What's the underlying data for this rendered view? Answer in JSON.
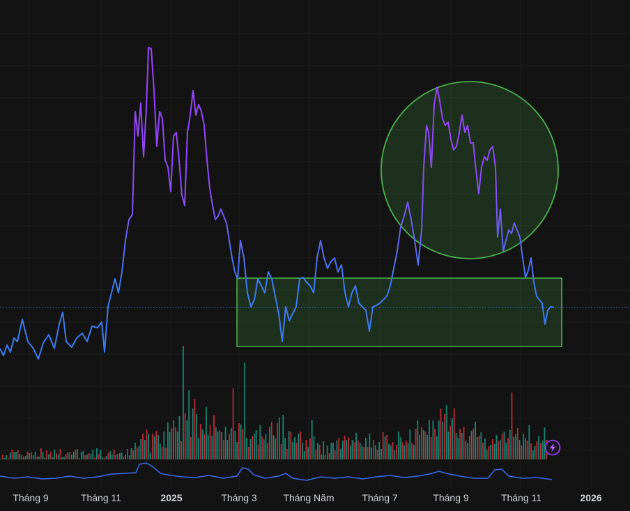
{
  "chart_data": {
    "type": "line",
    "price_line": {
      "gradient_colors": [
        "#3d7bf0",
        "#a040ff"
      ],
      "points": [
        [
          0,
          500
        ],
        [
          5,
          510
        ],
        [
          10,
          495
        ],
        [
          15,
          505
        ],
        [
          20,
          485
        ],
        [
          25,
          490
        ],
        [
          32,
          458
        ],
        [
          40,
          490
        ],
        [
          48,
          500
        ],
        [
          55,
          515
        ],
        [
          62,
          492
        ],
        [
          70,
          480
        ],
        [
          78,
          500
        ],
        [
          85,
          465
        ],
        [
          90,
          448
        ],
        [
          95,
          490
        ],
        [
          103,
          498
        ],
        [
          110,
          485
        ],
        [
          118,
          478
        ],
        [
          125,
          490
        ],
        [
          132,
          468
        ],
        [
          140,
          470
        ],
        [
          146,
          462
        ],
        [
          150,
          505
        ],
        [
          155,
          440
        ],
        [
          160,
          420
        ],
        [
          165,
          400
        ],
        [
          170,
          420
        ],
        [
          175,
          390
        ],
        [
          180,
          345
        ],
        [
          185,
          315
        ],
        [
          190,
          308
        ],
        [
          194,
          160
        ],
        [
          198,
          195
        ],
        [
          202,
          148
        ],
        [
          206,
          225
        ],
        [
          210,
          155
        ],
        [
          213,
          68
        ],
        [
          217,
          70
        ],
        [
          221,
          130
        ],
        [
          225,
          210
        ],
        [
          229,
          160
        ],
        [
          233,
          170
        ],
        [
          237,
          230
        ],
        [
          241,
          240
        ],
        [
          245,
          275
        ],
        [
          249,
          195
        ],
        [
          253,
          190
        ],
        [
          257,
          230
        ],
        [
          261,
          280
        ],
        [
          265,
          295
        ],
        [
          269,
          190
        ],
        [
          273,
          165
        ],
        [
          277,
          130
        ],
        [
          281,
          165
        ],
        [
          285,
          150
        ],
        [
          289,
          160
        ],
        [
          293,
          180
        ],
        [
          297,
          230
        ],
        [
          301,
          270
        ],
        [
          305,
          295
        ],
        [
          309,
          315
        ],
        [
          313,
          310
        ],
        [
          317,
          300
        ],
        [
          321,
          310
        ],
        [
          325,
          320
        ],
        [
          329,
          345
        ],
        [
          333,
          370
        ],
        [
          337,
          390
        ],
        [
          341,
          400
        ],
        [
          345,
          345
        ],
        [
          350,
          370
        ],
        [
          355,
          420
        ],
        [
          360,
          440
        ],
        [
          365,
          430
        ],
        [
          370,
          400
        ],
        [
          375,
          410
        ],
        [
          380,
          420
        ],
        [
          385,
          390
        ],
        [
          390,
          400
        ],
        [
          395,
          425
        ],
        [
          400,
          450
        ],
        [
          405,
          490
        ],
        [
          410,
          440
        ],
        [
          415,
          460
        ],
        [
          420,
          450
        ],
        [
          425,
          440
        ],
        [
          430,
          400
        ],
        [
          435,
          398
        ],
        [
          440,
          405
        ],
        [
          445,
          410
        ],
        [
          450,
          420
        ],
        [
          455,
          370
        ],
        [
          460,
          345
        ],
        [
          465,
          370
        ],
        [
          470,
          385
        ],
        [
          475,
          375
        ],
        [
          480,
          370
        ],
        [
          485,
          390
        ],
        [
          490,
          380
        ],
        [
          495,
          420
        ],
        [
          500,
          440
        ],
        [
          505,
          420
        ],
        [
          510,
          410
        ],
        [
          515,
          435
        ],
        [
          520,
          440
        ],
        [
          525,
          445
        ],
        [
          530,
          475
        ],
        [
          535,
          440
        ],
        [
          540,
          438
        ],
        [
          545,
          435
        ],
        [
          550,
          430
        ],
        [
          555,
          425
        ],
        [
          560,
          410
        ],
        [
          565,
          385
        ],
        [
          570,
          360
        ],
        [
          575,
          325
        ],
        [
          580,
          310
        ],
        [
          585,
          290
        ],
        [
          590,
          315
        ],
        [
          595,
          345
        ],
        [
          600,
          380
        ],
        [
          605,
          330
        ],
        [
          608,
          240
        ],
        [
          612,
          180
        ],
        [
          615,
          190
        ],
        [
          619,
          240
        ],
        [
          623,
          150
        ],
        [
          627,
          125
        ],
        [
          631,
          145
        ],
        [
          635,
          170
        ],
        [
          639,
          180
        ],
        [
          643,
          175
        ],
        [
          647,
          200
        ],
        [
          651,
          215
        ],
        [
          655,
          210
        ],
        [
          659,
          190
        ],
        [
          663,
          165
        ],
        [
          667,
          190
        ],
        [
          671,
          180
        ],
        [
          675,
          205
        ],
        [
          679,
          205
        ],
        [
          683,
          245
        ],
        [
          687,
          278
        ],
        [
          691,
          240
        ],
        [
          695,
          225
        ],
        [
          699,
          230
        ],
        [
          703,
          215
        ],
        [
          707,
          210
        ],
        [
          711,
          240
        ],
        [
          714,
          340
        ],
        [
          718,
          300
        ],
        [
          722,
          360
        ],
        [
          726,
          345
        ],
        [
          730,
          330
        ],
        [
          734,
          335
        ],
        [
          738,
          320
        ],
        [
          742,
          330
        ],
        [
          746,
          340
        ],
        [
          750,
          370
        ],
        [
          754,
          398
        ],
        [
          758,
          388
        ],
        [
          762,
          370
        ],
        [
          766,
          405
        ],
        [
          770,
          425
        ],
        [
          774,
          430
        ],
        [
          778,
          435
        ],
        [
          782,
          465
        ],
        [
          786,
          445
        ],
        [
          790,
          440
        ],
        [
          795,
          441
        ]
      ]
    },
    "last_price_line_color": "#3b74d8",
    "volume_bars": [
      1,
      7,
      2,
      6,
      2,
      10,
      14,
      11,
      11,
      13,
      8,
      6,
      4,
      5,
      11,
      9,
      10,
      6,
      11,
      4,
      4,
      16,
      11,
      3,
      13,
      7,
      11,
      3,
      14,
      9,
      7,
      15,
      3,
      4,
      8,
      10,
      11,
      7,
      11,
      14,
      15,
      2,
      11,
      12,
      6,
      7,
      9,
      8,
      14,
      3,
      16,
      8,
      14,
      3,
      2,
      5,
      9,
      12,
      7,
      14,
      7,
      8,
      9,
      10,
      4,
      7,
      15,
      6,
      16,
      13,
      24,
      17,
      19,
      29,
      37,
      28,
      43,
      37,
      10,
      37,
      33,
      41,
      35,
      23,
      18,
      40,
      17,
      53,
      39,
      45,
      56,
      46,
      40,
      62,
      26,
      163,
      66,
      56,
      99,
      32,
      73,
      87,
      65,
      31,
      51,
      43,
      36,
      75,
      35,
      49,
      34,
      64,
      46,
      40,
      42,
      39,
      28,
      47,
      28,
      37,
      45,
      102,
      41,
      25,
      52,
      50,
      43,
      139,
      31,
      18,
      29,
      33,
      37,
      42,
      21,
      49,
      33,
      29,
      37,
      24,
      47,
      54,
      35,
      30,
      52,
      60,
      22,
      64,
      31,
      15,
      41,
      40,
      25,
      32,
      24,
      37,
      40,
      24,
      12,
      28,
      18,
      30,
      57,
      33,
      14,
      24,
      21,
      7,
      26,
      6,
      20,
      9,
      24,
      24,
      13,
      27,
      31,
      15,
      27,
      34,
      28,
      32,
      20,
      28,
      25,
      38,
      27,
      24,
      19,
      18,
      31,
      18,
      37,
      17,
      28,
      20,
      14,
      25,
      15,
      39,
      33,
      35,
      22,
      20,
      25,
      13,
      21,
      40,
      32,
      25,
      20,
      27,
      23,
      43,
      24,
      21,
      44,
      56,
      35,
      47,
      42,
      40,
      35,
      57,
      32,
      56,
      44,
      33,
      56,
      73,
      54,
      65,
      78,
      40,
      48,
      59,
      73,
      38,
      31,
      44,
      38,
      47,
      27,
      24,
      34,
      41,
      44,
      54,
      32,
      34,
      39,
      24,
      30,
      14,
      19,
      21,
      29,
      22,
      35,
      26,
      28,
      37,
      40,
      24,
      31,
      42,
      96,
      32,
      36,
      45,
      28,
      20,
      37,
      31,
      27,
      49,
      23,
      13,
      19,
      26,
      34,
      23,
      27,
      46,
      28
    ],
    "volume_colors": {
      "up": "#22ab94",
      "down": "#f23645"
    },
    "indicator_line": [
      [
        0,
        683
      ],
      [
        20,
        686
      ],
      [
        40,
        684
      ],
      [
        60,
        687
      ],
      [
        80,
        686
      ],
      [
        100,
        683
      ],
      [
        120,
        686
      ],
      [
        140,
        684
      ],
      [
        160,
        680
      ],
      [
        180,
        679
      ],
      [
        195,
        678
      ],
      [
        200,
        666
      ],
      [
        210,
        664
      ],
      [
        220,
        670
      ],
      [
        230,
        679
      ],
      [
        240,
        681
      ],
      [
        260,
        684
      ],
      [
        280,
        685
      ],
      [
        300,
        682
      ],
      [
        320,
        686
      ],
      [
        340,
        683
      ],
      [
        348,
        671
      ],
      [
        356,
        673
      ],
      [
        364,
        681
      ],
      [
        380,
        686
      ],
      [
        400,
        683
      ],
      [
        410,
        679
      ],
      [
        420,
        686
      ],
      [
        440,
        689
      ],
      [
        460,
        684
      ],
      [
        480,
        686
      ],
      [
        500,
        684
      ],
      [
        520,
        687
      ],
      [
        540,
        684
      ],
      [
        560,
        682
      ],
      [
        580,
        685
      ],
      [
        600,
        683
      ],
      [
        620,
        679
      ],
      [
        630,
        676
      ],
      [
        640,
        679
      ],
      [
        660,
        683
      ],
      [
        680,
        686
      ],
      [
        700,
        686
      ],
      [
        710,
        674
      ],
      [
        720,
        673
      ],
      [
        730,
        683
      ],
      [
        750,
        686
      ],
      [
        770,
        685
      ],
      [
        792,
        688
      ]
    ],
    "indicator_color": "#3d6ef2",
    "x_tick_labels": [
      {
        "label": "Tháng 9",
        "bold": false
      },
      {
        "label": "Tháng 11",
        "bold": false
      },
      {
        "label": "2025",
        "bold": true
      },
      {
        "label": "Tháng 3",
        "bold": false
      },
      {
        "label": "Tháng Năm",
        "bold": false
      },
      {
        "label": "Tháng 7",
        "bold": false
      },
      {
        "label": "Tháng 9",
        "bold": false
      },
      {
        "label": "Tháng 11",
        "bold": false
      },
      {
        "label": "2026",
        "bold": true
      }
    ],
    "annotations": {
      "range_box": {
        "shape": "rectangle",
        "stroke": "#4caf50",
        "fill": "rgba(76,175,80,0.18)"
      },
      "highlight_circle": {
        "shape": "ellipse",
        "stroke": "#4caf50",
        "fill": "rgba(76,175,80,0.18)"
      }
    },
    "grid": true,
    "ylabel": "",
    "xlabel": "",
    "title": ""
  },
  "alert_icon": "lightning-icon"
}
